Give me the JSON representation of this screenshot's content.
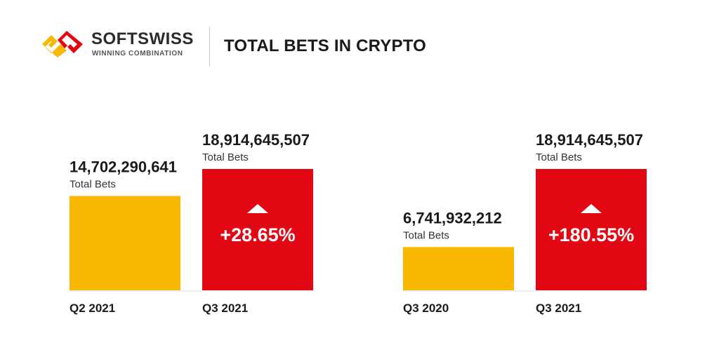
{
  "brand": {
    "name": "SOFTSWISS",
    "tagline": "WINNING COMBINATION",
    "logo_colors": [
      "#e30613",
      "#f9b800"
    ]
  },
  "title": "TOTAL BETS IN CRYPTO",
  "colors": {
    "previous": "#f9b800",
    "current": "#e30613",
    "baseline": "#eeeeee"
  },
  "chart_data": [
    {
      "type": "bar",
      "categories": [
        "Q2 2021",
        "Q3 2021"
      ],
      "values": [
        14702290641,
        18914645507
      ],
      "value_labels": [
        "14,702,290,641",
        "18,914,645,507"
      ],
      "value_sublabel": "Total Bets",
      "change_label": "+28.65%",
      "change_direction": "up",
      "grid": false
    },
    {
      "type": "bar",
      "categories": [
        "Q3 2020",
        "Q3 2021"
      ],
      "values": [
        6741932212,
        18914645507
      ],
      "value_labels": [
        "6,741,932,212",
        "18,914,645,507"
      ],
      "value_sublabel": "Total Bets",
      "change_label": "+180.55%",
      "change_direction": "up",
      "grid": false
    }
  ]
}
